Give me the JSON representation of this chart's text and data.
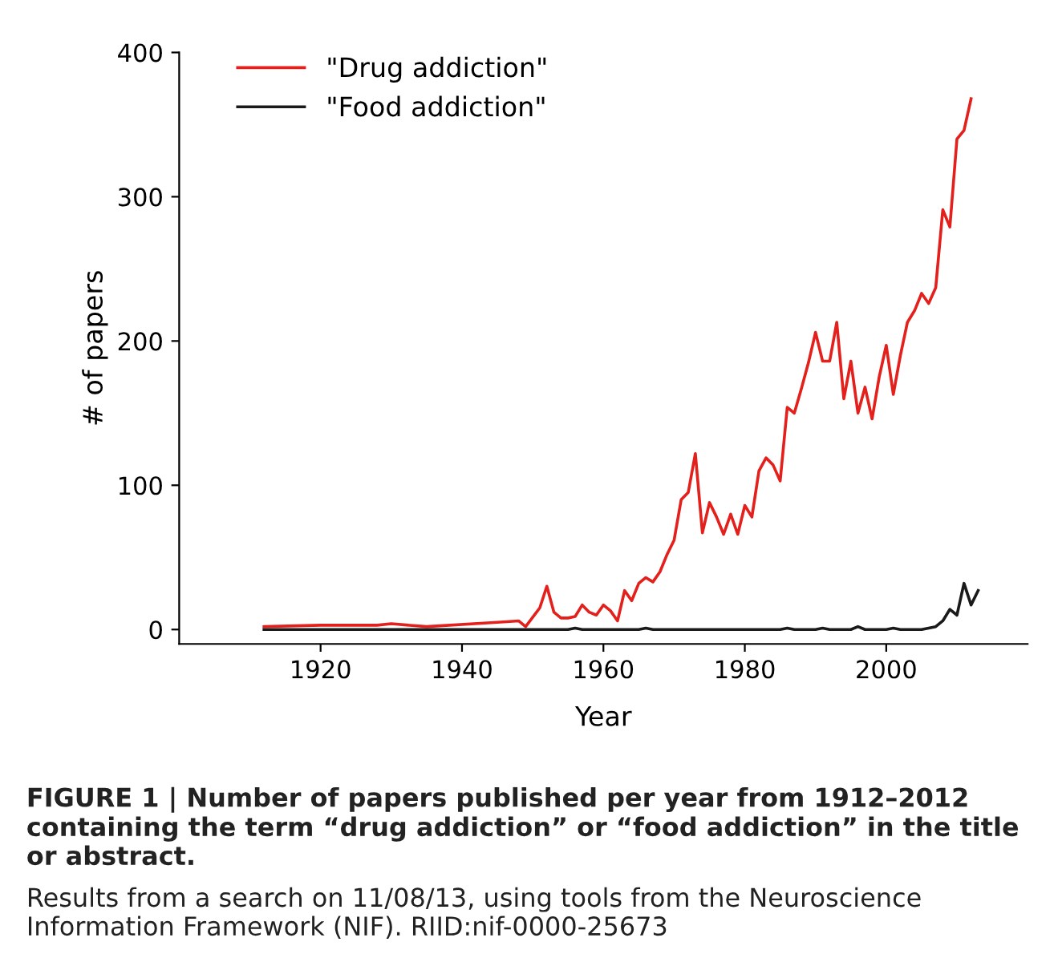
{
  "chart_data": {
    "type": "line",
    "xlabel": "Year",
    "ylabel": "# of papers",
    "xlim": [
      1900,
      2020
    ],
    "ylim": [
      -10,
      400
    ],
    "xticks": [
      1920,
      1940,
      1960,
      1980,
      2000
    ],
    "yticks": [
      0,
      100,
      200,
      300,
      400
    ],
    "grid": false,
    "legend": "top left",
    "marker": "none",
    "line_style": "solid",
    "series": [
      {
        "name": "\"Drug addiction\"",
        "color": "#e3201b",
        "x": [
          1912,
          1920,
          1928,
          1930,
          1935,
          1945,
          1948,
          1949,
          1951,
          1952,
          1953,
          1954,
          1955,
          1956,
          1957,
          1958,
          1959,
          1960,
          1961,
          1962,
          1963,
          1964,
          1965,
          1966,
          1967,
          1968,
          1969,
          1970,
          1971,
          1972,
          1973,
          1974,
          1975,
          1976,
          1977,
          1978,
          1979,
          1980,
          1981,
          1982,
          1983,
          1984,
          1985,
          1986,
          1987,
          1988,
          1989,
          1990,
          1991,
          1992,
          1993,
          1994,
          1995,
          1996,
          1997,
          1998,
          1999,
          2000,
          2001,
          2002,
          2003,
          2004,
          2005,
          2006,
          2007,
          2008,
          2009,
          2010,
          2011,
          2012
        ],
        "values": [
          2,
          3,
          3,
          4,
          2,
          5,
          6,
          2,
          15,
          30,
          12,
          8,
          8,
          9,
          17,
          12,
          10,
          17,
          13,
          6,
          27,
          20,
          32,
          36,
          33,
          40,
          52,
          62,
          90,
          95,
          122,
          67,
          88,
          78,
          66,
          80,
          66,
          86,
          78,
          110,
          119,
          114,
          103,
          154,
          150,
          167,
          185,
          206,
          186,
          186,
          213,
          160,
          186,
          150,
          168,
          146,
          175,
          197,
          163,
          190,
          213,
          221,
          233,
          226,
          237,
          291,
          279,
          340,
          346,
          368
        ]
      },
      {
        "name": "\"Food addiction\"",
        "color": "#1a1a1a",
        "x": [
          1912,
          1955,
          1956,
          1957,
          1965,
          1966,
          1967,
          1985,
          1986,
          1987,
          1990,
          1991,
          1992,
          1995,
          1996,
          1997,
          2000,
          2001,
          2002,
          2005,
          2006,
          2007,
          2008,
          2009,
          2010,
          2011,
          2012,
          2013
        ],
        "values": [
          0,
          0,
          1,
          0,
          0,
          1,
          0,
          0,
          1,
          0,
          0,
          1,
          0,
          0,
          2,
          0,
          0,
          1,
          0,
          0,
          1,
          2,
          6,
          14,
          10,
          32,
          17,
          27
        ]
      }
    ],
    "annotations": [
      "FIGURE 1 | Number of papers published per year from 1912–2012 containing the term “drug addiction” or “food addiction” in the title or abstract.",
      "Results from a search on 11/08/13, using tools from the Neuroscience Information Framework (NIF). RIID:nif-0000-25673"
    ]
  }
}
